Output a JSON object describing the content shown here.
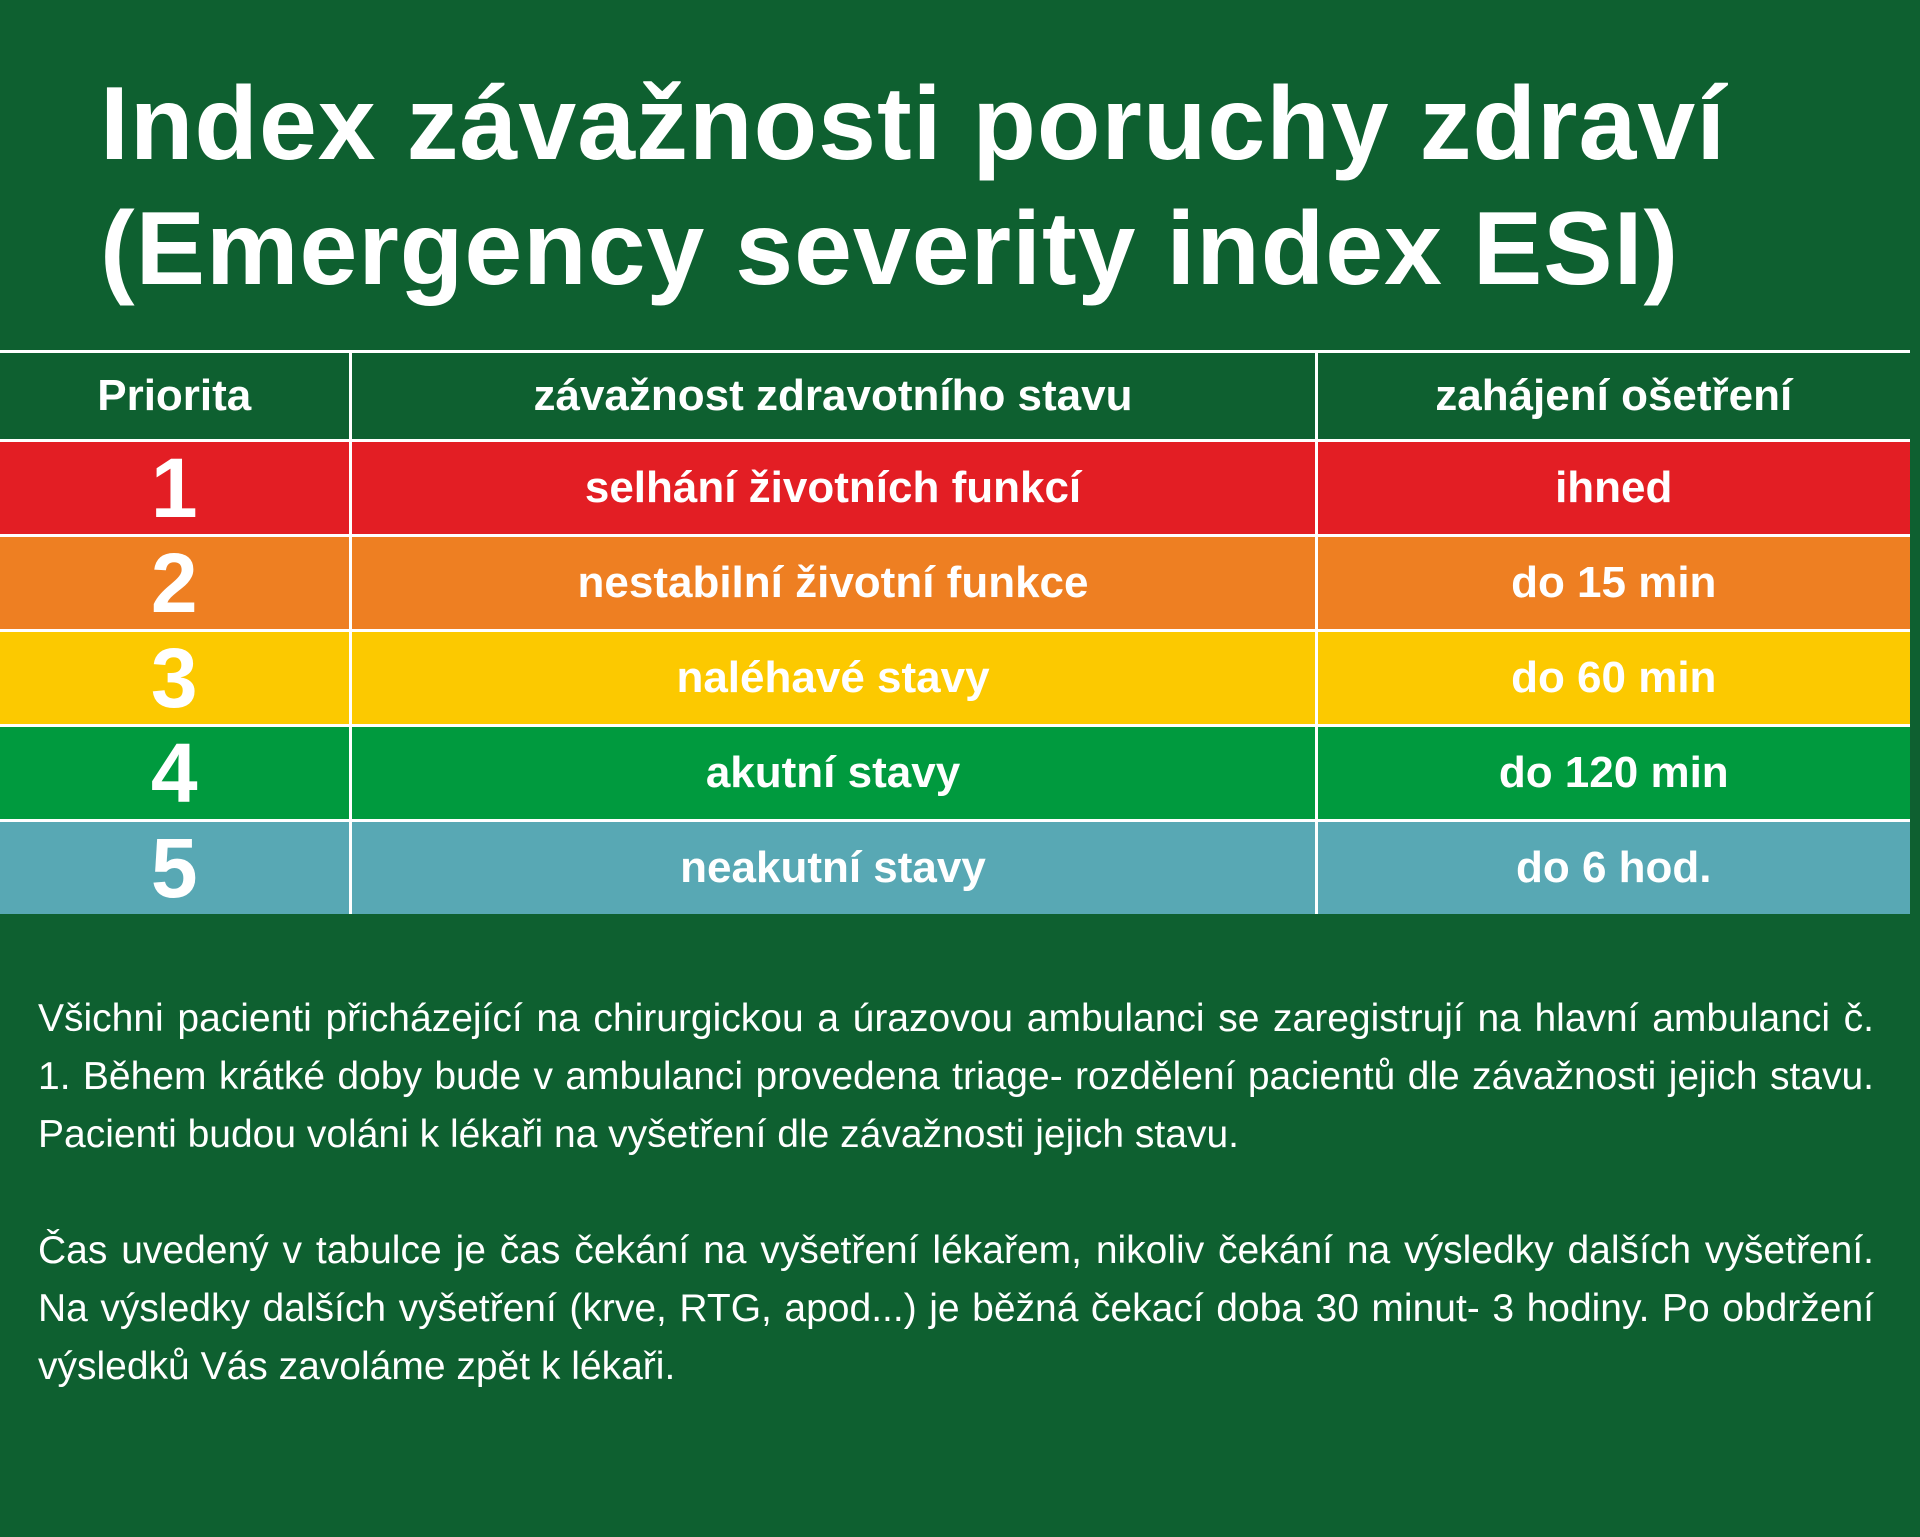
{
  "title": {
    "line1": "Index závažnosti poruchy zdraví",
    "line2": "(Emergency severity index ESI)"
  },
  "table": {
    "headers": [
      "Priorita",
      "závažnost zdravotního stavu",
      "zahájení ošetření"
    ],
    "rows": [
      {
        "priority": "1",
        "severity": "selhání životních funkcí",
        "start": "ihned",
        "color": "#e31e24"
      },
      {
        "priority": "2",
        "severity": "nestabilní životní funkce",
        "start": "do 15 min",
        "color": "#ee7f22"
      },
      {
        "priority": "3",
        "severity": "naléhavé stavy",
        "start": "do 60 min",
        "color": "#fcc900"
      },
      {
        "priority": "4",
        "severity": "akutní stavy",
        "start": "do 120 min",
        "color": "#009a3e"
      },
      {
        "priority": "5",
        "severity": "neakutní stavy",
        "start": "do 6 hod.",
        "color": "#58a8b4"
      }
    ]
  },
  "notes": {
    "paragraph1": "Všichni pacienti přicházející na chirurgickou a úrazovou ambulanci se zaregistrují na hlavní ambulanci č. 1. Během krátké doby bude v ambulanci provedena triage- rozdělení pacientů dle závažnosti jejich stavu. Pacienti budou voláni k lékaři na vyšetření dle závažnosti jejich stavu.",
    "paragraph2": "Čas uvedený v tabulce je čas čekání na vyšetření lékařem, nikoliv čekání na výsledky dalších vyšetření. Na výsledky dalších vyšetření (krve, RTG, apod...) je běžná čekací doba 30 minut- 3 hodiny. Po obdržení výsledků Vás zavoláme zpět k lékaři."
  },
  "colors": {
    "background": "#0e6030",
    "text": "#ffffff"
  }
}
